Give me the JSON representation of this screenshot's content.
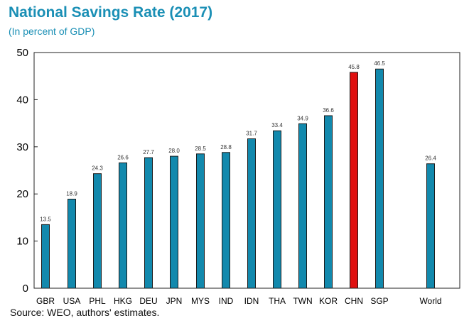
{
  "title": "National Savings Rate (2017)",
  "subtitle": "(In percent of GDP)",
  "source": "Source: WEO, authors' estimates.",
  "colors": {
    "bar": "#1289ad",
    "highlight": "#e01010",
    "bar_stroke": "#1b1b1b",
    "title": "#1a8fb5"
  },
  "chart_data": {
    "type": "bar",
    "title": "National Savings Rate (2017)",
    "subtitle": "(In percent of GDP)",
    "xlabel": "",
    "ylabel": "",
    "ylim": [
      0,
      50
    ],
    "yticks": [
      0,
      10,
      20,
      30,
      40,
      50
    ],
    "grid": false,
    "legend": "none",
    "categories": [
      "GBR",
      "USA",
      "PHL",
      "HKG",
      "DEU",
      "JPN",
      "MYS",
      "IND",
      "IDN",
      "THA",
      "TWN",
      "KOR",
      "CHN",
      "SGP",
      "World"
    ],
    "values": [
      13.5,
      18.9,
      24.3,
      26.6,
      27.7,
      28.0,
      28.5,
      28.8,
      31.7,
      33.4,
      34.9,
      36.6,
      45.8,
      46.5,
      26.4
    ],
    "data_labels": [
      "13.5",
      "18.9",
      "24.3",
      "26.6",
      "27.7",
      "28.0",
      "28.5",
      "28.8",
      "31.7",
      "33.4",
      "34.9",
      "36.6",
      "45.8",
      "46.5",
      "26.4"
    ],
    "highlight_category": "CHN"
  }
}
